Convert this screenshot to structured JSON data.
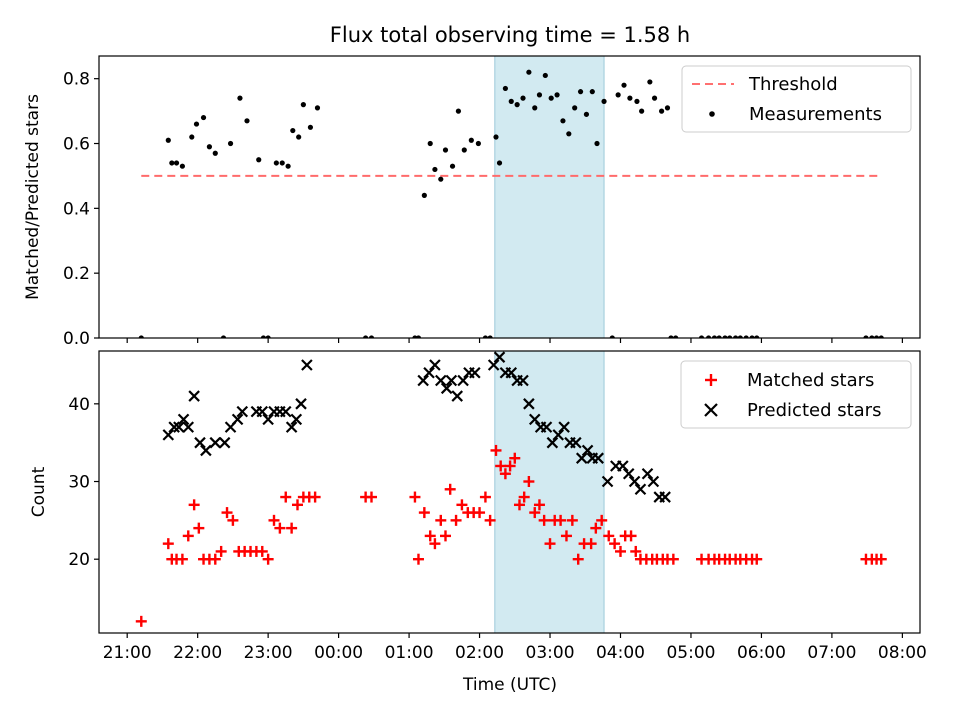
{
  "chart_data": [
    {
      "type": "scatter",
      "title": "Flux total observing time = 1.58 h",
      "xlabel": "",
      "ylabel": "Matched/Predicted stars",
      "ylim": [
        0,
        0.87
      ],
      "xlim_hours": [
        20.6,
        32.25
      ],
      "x_ticks": [
        "21:00",
        "22:00",
        "23:00",
        "00:00",
        "01:00",
        "02:00",
        "03:00",
        "04:00",
        "05:00",
        "06:00",
        "07:00",
        "08:00"
      ],
      "y_ticks": [
        "0.0",
        "0.2",
        "0.4",
        "0.6",
        "0.8"
      ],
      "shaded_span": {
        "start": "02:13",
        "end": "03:46",
        "color": "#add8e6"
      },
      "threshold": {
        "name": "Threshold",
        "value": 0.5,
        "x_start": "21:12",
        "x_end": "07:42",
        "color": "#ff6b6b",
        "style": "dashed"
      },
      "legend": {
        "position": "top-right",
        "entries": [
          {
            "name": "Threshold",
            "marker": "dashed-line",
            "color": "#ff7070"
          },
          {
            "name": "Measurements",
            "marker": "dot",
            "color": "#000000"
          }
        ]
      },
      "series": [
        {
          "name": "Measurements",
          "color": "#000000",
          "x": [
            "21:12",
            "21:35",
            "21:38",
            "21:42",
            "21:47",
            "21:55",
            "21:59",
            "22:05",
            "22:10",
            "22:15",
            "22:22",
            "22:28",
            "22:36",
            "22:42",
            "22:52",
            "22:56",
            "23:00",
            "23:07",
            "23:12",
            "23:17",
            "23:21",
            "23:26",
            "23:30",
            "23:36",
            "23:42",
            "00:23",
            "00:28",
            "01:05",
            "01:08",
            "01:13",
            "01:18",
            "01:22",
            "01:27",
            "01:31",
            "01:37",
            "01:42",
            "01:47",
            "01:53",
            "01:59",
            "02:05",
            "02:09",
            "02:14",
            "02:17",
            "02:22",
            "02:27",
            "02:32",
            "02:37",
            "02:42",
            "02:47",
            "02:51",
            "02:56",
            "03:01",
            "03:06",
            "03:11",
            "03:16",
            "03:21",
            "03:26",
            "03:31",
            "03:36",
            "03:40",
            "03:46",
            "03:53",
            "03:58",
            "04:03",
            "04:08",
            "04:14",
            "04:18",
            "04:25",
            "04:29",
            "04:35",
            "04:40",
            "04:43",
            "04:47",
            "05:09",
            "05:15",
            "05:20",
            "05:24",
            "05:29",
            "05:33",
            "05:38",
            "05:42",
            "05:47",
            "05:52",
            "05:56",
            "07:29",
            "07:34",
            "07:38",
            "07:42"
          ],
          "y": [
            0.0,
            0.61,
            0.54,
            0.54,
            0.53,
            0.62,
            0.66,
            0.68,
            0.59,
            0.57,
            0.0,
            0.6,
            0.74,
            0.67,
            0.55,
            0.0,
            0.0,
            0.54,
            0.54,
            0.53,
            0.64,
            0.62,
            0.72,
            0.65,
            0.71,
            0.0,
            0.0,
            0.0,
            0.0,
            0.44,
            0.6,
            0.52,
            0.49,
            0.58,
            0.53,
            0.7,
            0.58,
            0.61,
            0.6,
            0.0,
            0.0,
            0.62,
            0.54,
            0.77,
            0.73,
            0.72,
            0.74,
            0.82,
            0.71,
            0.75,
            0.81,
            0.74,
            0.75,
            0.67,
            0.63,
            0.71,
            0.76,
            0.69,
            0.76,
            0.6,
            0.73,
            0.0,
            0.75,
            0.78,
            0.74,
            0.73,
            0.7,
            0.79,
            0.74,
            0.7,
            0.71,
            0.0,
            0.0,
            0.0,
            0.0,
            0.0,
            0.0,
            0.0,
            0.0,
            0.0,
            0.0,
            0.0,
            0.0,
            0.0,
            0.0,
            0.0,
            0.0,
            0.0
          ]
        }
      ]
    },
    {
      "type": "scatter",
      "title": "",
      "xlabel": "Time (UTC)",
      "ylabel": "Count",
      "ylim": [
        10.5,
        46.8
      ],
      "xlim_hours": [
        20.6,
        32.25
      ],
      "x_ticks": [
        "21:00",
        "22:00",
        "23:00",
        "00:00",
        "01:00",
        "02:00",
        "03:00",
        "04:00",
        "05:00",
        "06:00",
        "07:00",
        "08:00"
      ],
      "y_ticks": [
        "20",
        "30",
        "40"
      ],
      "shaded_span": {
        "start": "02:13",
        "end": "03:46",
        "color": "#add8e6"
      },
      "legend": {
        "position": "top-right",
        "entries": [
          {
            "name": "Matched stars",
            "marker": "plus",
            "color": "#ff0000"
          },
          {
            "name": "Predicted stars",
            "marker": "x",
            "color": "#000000"
          }
        ]
      },
      "series": [
        {
          "name": "Matched stars",
          "color": "#ff0000",
          "x": [
            "21:12",
            "21:35",
            "21:38",
            "21:42",
            "21:47",
            "21:52",
            "21:57",
            "22:01",
            "22:05",
            "22:10",
            "22:15",
            "22:20",
            "22:25",
            "22:30",
            "22:35",
            "22:40",
            "22:45",
            "22:50",
            "22:55",
            "23:00",
            "23:05",
            "23:10",
            "23:15",
            "23:20",
            "23:25",
            "23:30",
            "23:35",
            "23:40",
            "00:23",
            "00:28",
            "01:05",
            "01:08",
            "01:13",
            "01:18",
            "01:22",
            "01:27",
            "01:31",
            "01:35",
            "01:40",
            "01:45",
            "01:50",
            "01:55",
            "02:00",
            "02:05",
            "02:09",
            "02:14",
            "02:18",
            "02:22",
            "02:26",
            "02:30",
            "02:34",
            "02:38",
            "02:42",
            "02:47",
            "02:51",
            "02:55",
            "03:00",
            "03:04",
            "03:09",
            "03:14",
            "03:19",
            "03:24",
            "03:29",
            "03:35",
            "03:39",
            "03:44",
            "03:50",
            "03:55",
            "04:00",
            "04:04",
            "04:09",
            "04:13",
            "04:17",
            "04:22",
            "04:27",
            "04:31",
            "04:36",
            "04:40",
            "04:45",
            "05:09",
            "05:15",
            "05:20",
            "05:24",
            "05:29",
            "05:33",
            "05:38",
            "05:42",
            "05:47",
            "05:52",
            "05:56",
            "07:29",
            "07:34",
            "07:38",
            "07:42"
          ],
          "y": [
            12,
            22,
            20,
            20,
            20,
            23,
            27,
            24,
            20,
            20,
            20,
            21,
            26,
            25,
            21,
            21,
            21,
            21,
            21,
            20,
            25,
            24,
            28,
            24,
            27,
            28,
            28,
            28,
            28,
            28,
            28,
            20,
            26,
            23,
            22,
            25,
            23,
            29,
            25,
            27,
            26,
            26,
            26,
            28,
            25,
            34,
            32,
            31,
            32,
            33,
            27,
            28,
            30,
            26,
            27,
            25,
            22,
            25,
            25,
            23,
            25,
            20,
            22,
            22,
            24,
            25,
            23,
            22,
            21,
            23,
            23,
            21,
            20,
            20,
            20,
            20,
            20,
            20,
            20,
            20,
            20,
            20,
            20,
            20,
            20,
            20,
            20,
            20,
            20,
            20,
            20,
            20,
            20,
            20
          ]
        },
        {
          "name": "Predicted stars",
          "color": "#000000",
          "x": [
            "21:35",
            "21:40",
            "21:44",
            "21:48",
            "21:52",
            "21:57",
            "22:02",
            "22:07",
            "22:15",
            "22:23",
            "22:28",
            "22:34",
            "22:38",
            "22:50",
            "22:55",
            "23:00",
            "23:05",
            "23:10",
            "23:15",
            "23:20",
            "23:24",
            "23:28",
            "23:33",
            "01:12",
            "01:17",
            "01:22",
            "01:27",
            "01:32",
            "01:36",
            "01:41",
            "01:46",
            "01:51",
            "01:56",
            "02:12",
            "02:17",
            "02:22",
            "02:27",
            "02:32",
            "02:37",
            "02:42",
            "02:47",
            "02:52",
            "02:57",
            "03:02",
            "03:07",
            "03:12",
            "03:17",
            "03:22",
            "03:27",
            "03:32",
            "03:36",
            "03:41",
            "03:49",
            "03:56",
            "04:02",
            "04:07",
            "04:12",
            "04:17",
            "04:23",
            "04:28",
            "04:33",
            "04:38"
          ],
          "y": [
            36,
            37,
            37,
            38,
            37,
            41,
            35,
            34,
            35,
            35,
            37,
            38,
            39,
            39,
            39,
            38,
            39,
            39,
            39,
            37,
            38,
            40,
            45,
            43,
            44,
            45,
            43,
            42,
            43,
            41,
            43,
            44,
            44,
            45,
            46,
            44,
            44,
            43,
            43,
            40,
            38,
            37,
            37,
            35,
            36,
            37,
            35,
            35,
            33,
            34,
            33,
            33,
            30,
            32,
            32,
            31,
            30,
            29,
            31,
            30,
            28,
            28
          ]
        }
      ]
    }
  ]
}
